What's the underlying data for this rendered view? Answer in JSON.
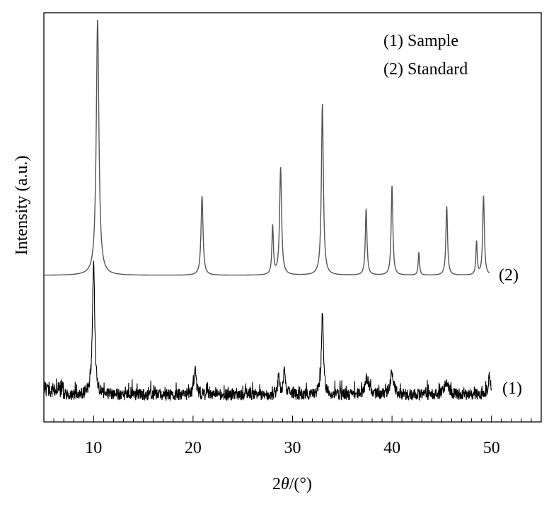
{
  "chart_data": {
    "type": "line",
    "xlabel_parts": [
      "2",
      "θ",
      "/(°)"
    ],
    "ylabel": "Intensity (a.u.)",
    "xlim": [
      5,
      55
    ],
    "x_ticks": [
      10,
      20,
      30,
      40,
      50
    ],
    "x_tick_labels": [
      "10",
      "20",
      "30",
      "40",
      "50"
    ],
    "y_ticks_shown": false,
    "grid": false,
    "legend": {
      "placement": "top-right",
      "entries": [
        "(1) Sample",
        "(2) Standard"
      ]
    },
    "series": [
      {
        "name": "(2) Standard",
        "curve_label": "(2)",
        "color": "#555555",
        "x_range": [
          5,
          49.8
        ],
        "baseline": 0,
        "noise": 0,
        "peaks": [
          {
            "x": 10.4,
            "h": 100,
            "w": 0.16
          },
          {
            "x": 20.9,
            "h": 31,
            "w": 0.12
          },
          {
            "x": 28.0,
            "h": 19,
            "w": 0.09
          },
          {
            "x": 28.8,
            "h": 42,
            "w": 0.12
          },
          {
            "x": 33.0,
            "h": 67,
            "w": 0.12
          },
          {
            "x": 37.4,
            "h": 26,
            "w": 0.1
          },
          {
            "x": 40.0,
            "h": 35,
            "w": 0.1
          },
          {
            "x": 42.7,
            "h": 9,
            "w": 0.08
          },
          {
            "x": 45.5,
            "h": 27,
            "w": 0.1
          },
          {
            "x": 48.5,
            "h": 13,
            "w": 0.08
          },
          {
            "x": 49.2,
            "h": 31,
            "w": 0.1
          }
        ]
      },
      {
        "name": "(1) Sample",
        "curve_label": "(1)",
        "color": "#000000",
        "x_range": [
          5,
          50
        ],
        "baseline": 0,
        "noise": 4,
        "peaks": [
          {
            "x": 10.0,
            "h": 93,
            "w": 0.13
          },
          {
            "x": 20.2,
            "h": 20,
            "w": 0.12
          },
          {
            "x": 28.6,
            "h": 12,
            "w": 0.12
          },
          {
            "x": 29.2,
            "h": 18,
            "w": 0.12
          },
          {
            "x": 33.0,
            "h": 57,
            "w": 0.12
          },
          {
            "x": 37.5,
            "h": 11,
            "w": 0.25
          },
          {
            "x": 40.0,
            "h": 15,
            "w": 0.2
          },
          {
            "x": 45.5,
            "h": 9,
            "w": 0.25
          },
          {
            "x": 49.8,
            "h": 13,
            "w": 0.15
          }
        ]
      }
    ]
  }
}
